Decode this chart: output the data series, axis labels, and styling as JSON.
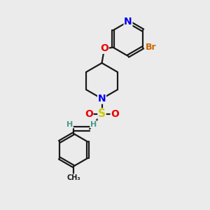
{
  "bg_color": "#ebebeb",
  "bond_color": "#1a1a1a",
  "bond_width": 1.6,
  "atom_colors": {
    "N": "#0000ee",
    "O": "#ee0000",
    "S": "#cccc00",
    "Br": "#cc6600",
    "H": "#4a9a8a",
    "C": "#1a1a1a"
  },
  "font_size": 9,
  "fig_size": [
    3.0,
    3.0
  ],
  "dpi": 100
}
